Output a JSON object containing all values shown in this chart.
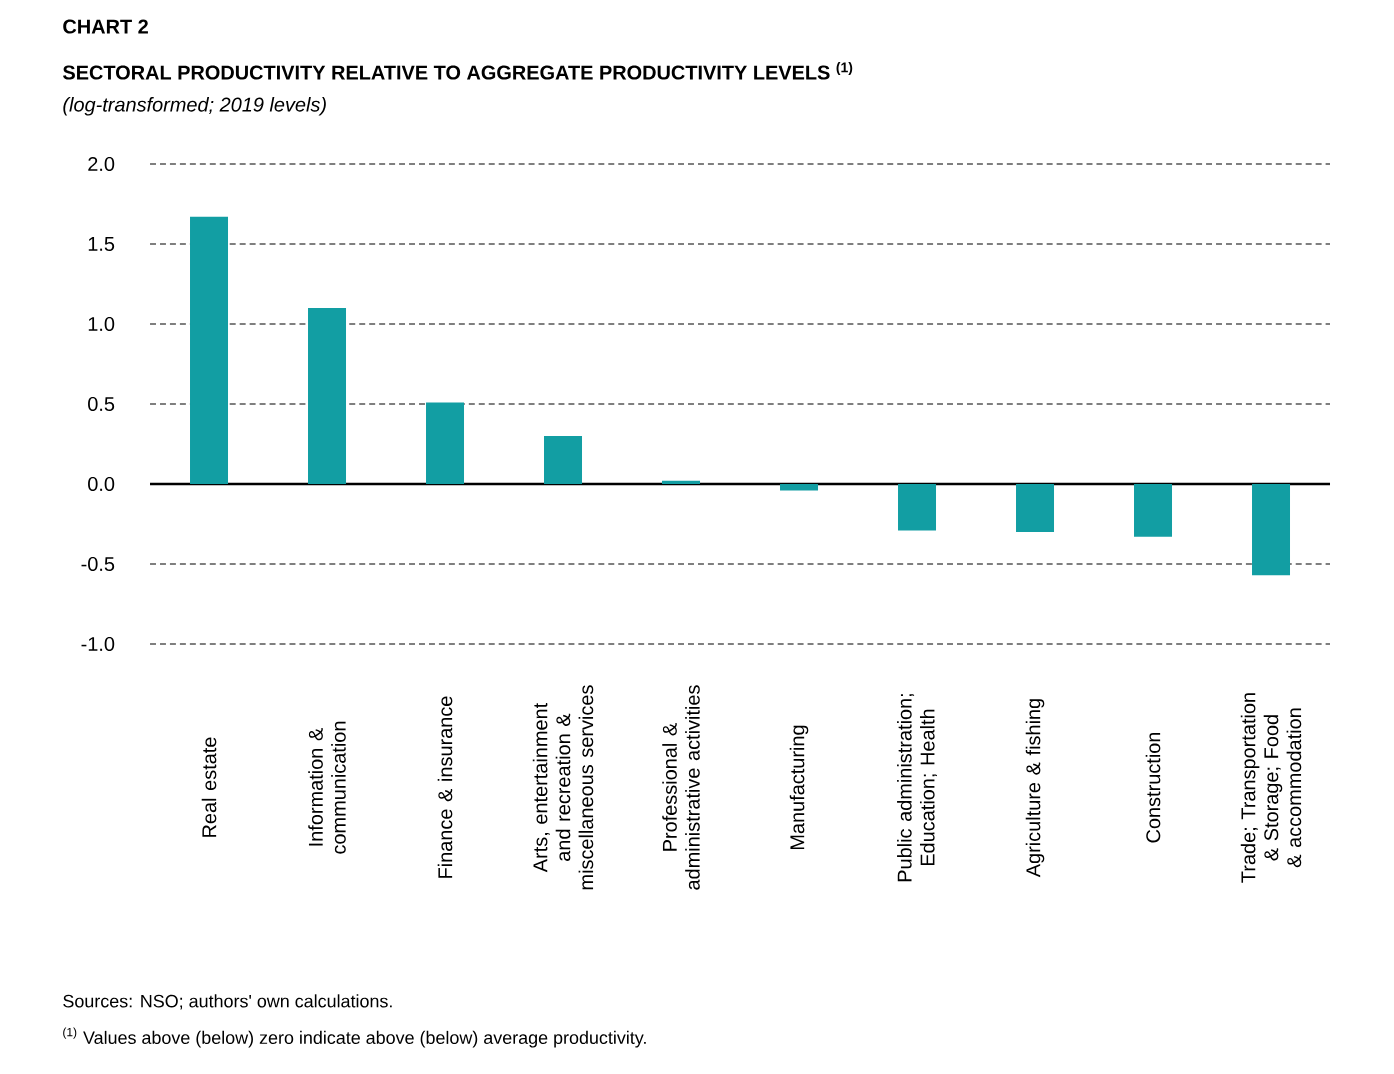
{
  "chart_data": {
    "type": "bar",
    "title": "CHART 2",
    "subtitle": "SECTORAL PRODUCTIVITY RELATIVE TO AGGREGATE PRODUCTIVITY LEVELS $^{(1)}$",
    "ylabel": "(log-transformed; 2019 levels)",
    "categories": [
      "Real estate",
      "Information & communication",
      "Finance & insurance",
      "Arts, entertainment and recreation & miscellaneous services",
      "Professional & administrative activities",
      "Manufacturing",
      "Public administration; Education; Health",
      "Agriculture & fishing",
      "Construction",
      "Trade; Transportation & Storage; Food & accommodation"
    ],
    "values": [
      1.67,
      1.1,
      0.51,
      0.3,
      0.02,
      -0.04,
      -0.29,
      -0.3,
      -0.33,
      -0.57
    ],
    "color": "#129ea3",
    "ylim": [
      -1.0,
      2.0
    ],
    "yticks": [
      {
        "value": -1.0,
        "label": "-1.0"
      },
      {
        "value": -0.5,
        "label": "-0.5"
      },
      {
        "value": 0,
        "label": "0.0"
      },
      {
        "value": 0.5,
        "label": "0.5"
      },
      {
        "value": 1.0,
        "label": "1.0"
      },
      {
        "value": 1.5,
        "label": "1.5"
      },
      {
        "value": 2.0,
        "label": "2.0"
      }
    ],
    "grid": "y",
    "annotations": [
      "Sources: NSO; authors' own calculations.",
      "$^{(1)}$ Values above (below) zero indicate above (below) average productivity."
    ]
  }
}
